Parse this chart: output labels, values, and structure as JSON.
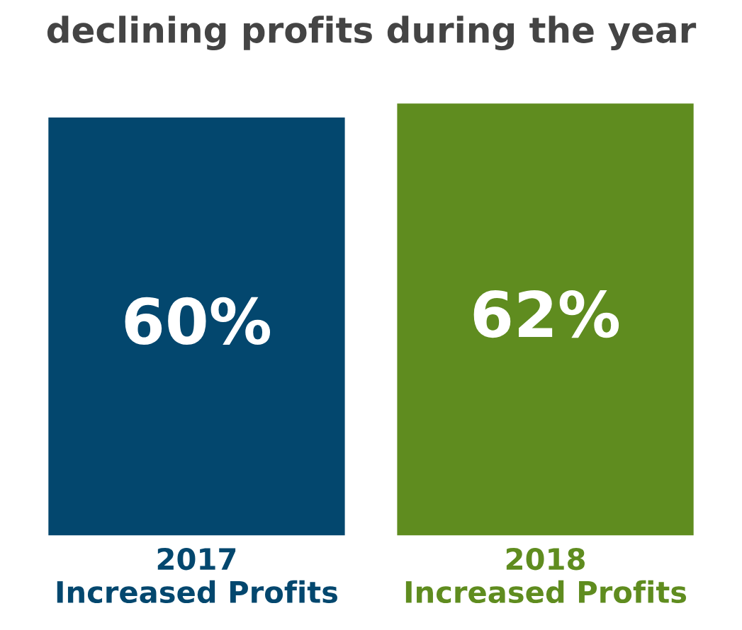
{
  "chart_data": {
    "type": "bar",
    "title": "declining profits during the year",
    "categories": [
      "2017\nIncreased Profits",
      "2018\nIncreased Profits"
    ],
    "values": [
      60,
      62
    ],
    "colors": [
      "#03476e",
      "#5f8c1f"
    ],
    "value_labels": [
      "60%",
      "62%"
    ],
    "grid": false,
    "legend": false
  }
}
